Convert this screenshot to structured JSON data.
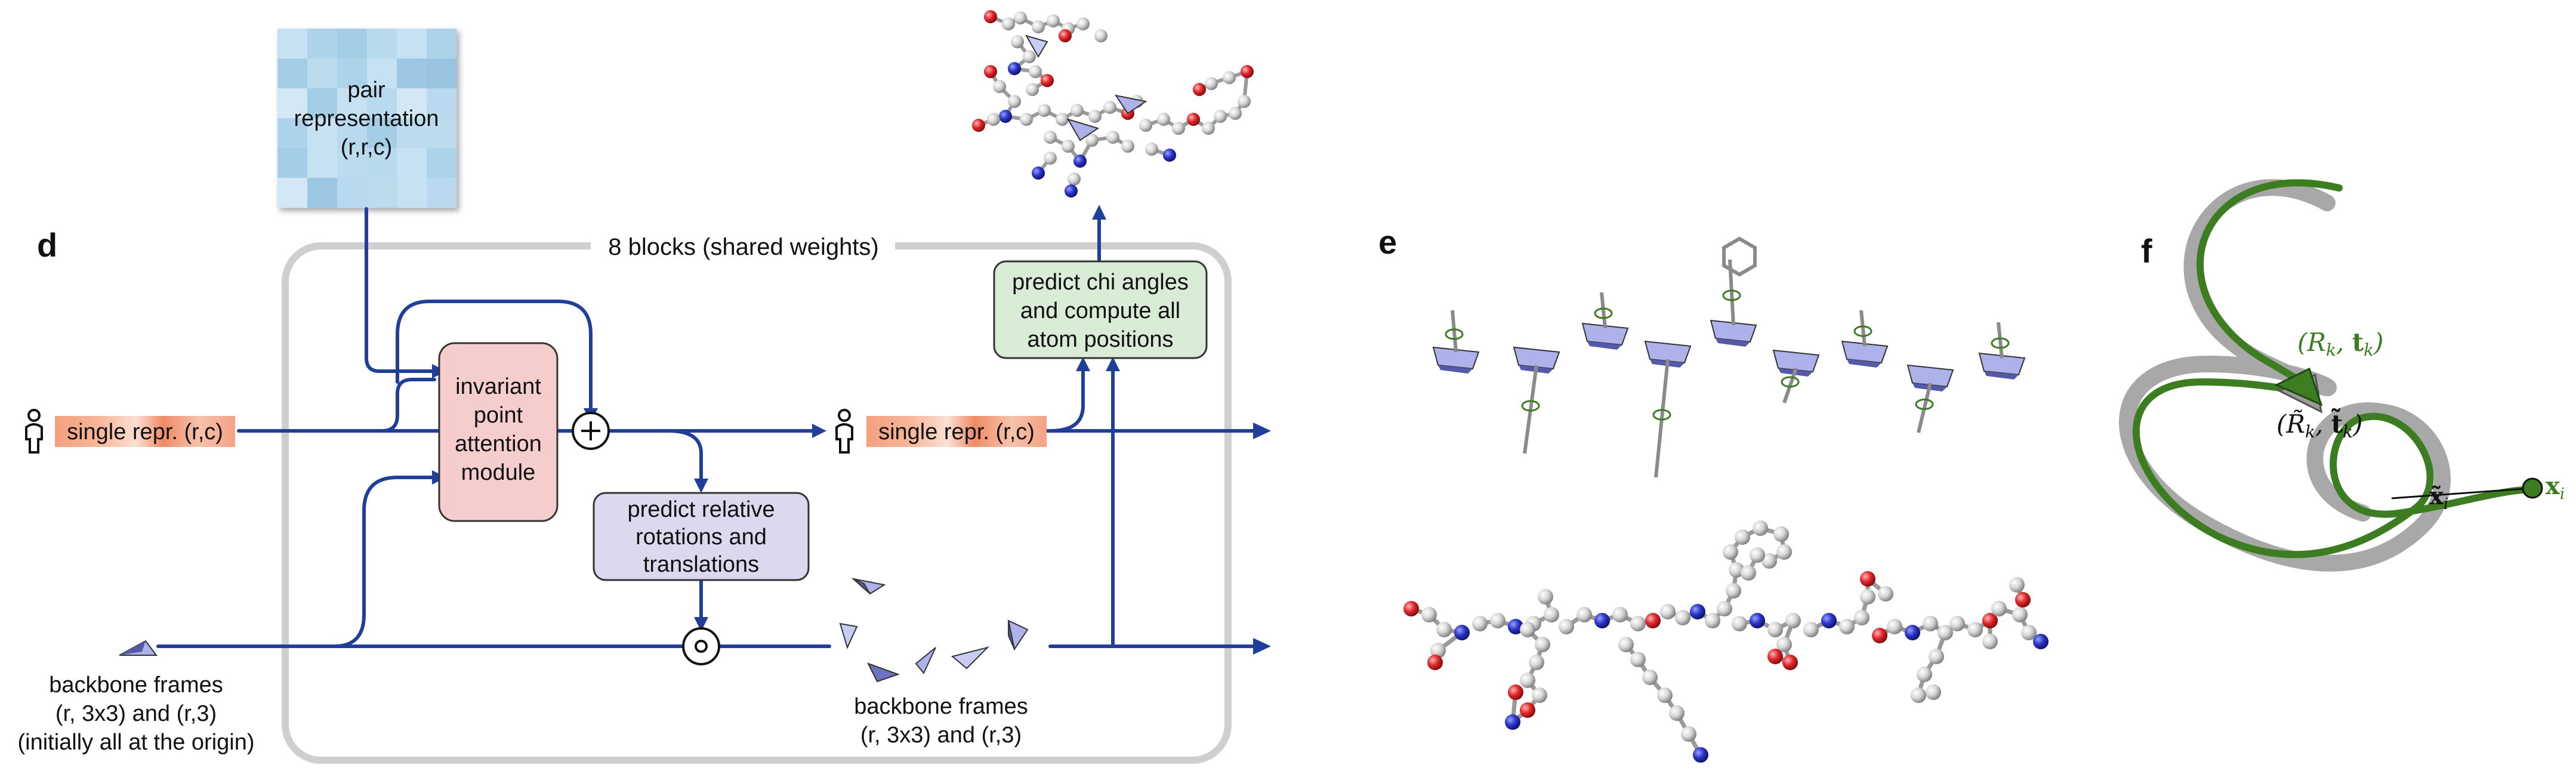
{
  "colors": {
    "arrow": "#1f3f9a",
    "box_border": "#cfcfcf",
    "ipa_fill": "#f5cdcd",
    "predict_frames_fill": "#dcd9ee",
    "predict_chi_fill": "#d9ecd6",
    "pair_fill": "#a9d1e8",
    "single_fill": "#f3a07e",
    "frame_fill": "#aeb2ea",
    "atom_gray": "#cfcfcf",
    "atom_red": "#e0262a",
    "atom_blue": "#2b34c8",
    "backbone_gray": "#a8a8a8",
    "backbone_green": "#3c7d22"
  },
  "icons": {
    "person": "person-icon",
    "plus": "plus-icon",
    "compose": "circle-dot-icon",
    "frame": "triangle-frame-icon"
  },
  "panel_d": {
    "letter": "d",
    "block_label": "8 blocks (shared weights)",
    "pair": {
      "line1": "pair",
      "line2": "representation",
      "line3": "(r,r,c)"
    },
    "single_in": {
      "text": "single repr. (r,c)"
    },
    "single_out": {
      "text": "single repr. (r,c)"
    },
    "ipa": {
      "line1": "invariant",
      "line2": "point",
      "line3": "attention",
      "line4": "module"
    },
    "predict_frames": {
      "line1": "predict relative",
      "line2": "rotations and",
      "line3": "translations"
    },
    "predict_chi": {
      "line1": "predict chi angles",
      "line2": "and compute all",
      "line3": "atom positions"
    },
    "frames_in": {
      "line1": "backbone frames",
      "line2": "(r, 3x3) and (r,3)",
      "line3": "(initially all at the origin)"
    },
    "frames_out": {
      "line1": "backbone frames",
      "line2": "(r, 3x3) and (r,3)"
    }
  },
  "panel_e": {
    "letter": "e"
  },
  "panel_f": {
    "letter": "f",
    "label_true_frame": "(R",
    "sub_k": "k",
    "label_t": "t",
    "label_pred_frame": "(R̃",
    "label_pred_t": "t̃",
    "label_x": "x",
    "label_x_tilde": "x̃",
    "sub_i": "i"
  }
}
